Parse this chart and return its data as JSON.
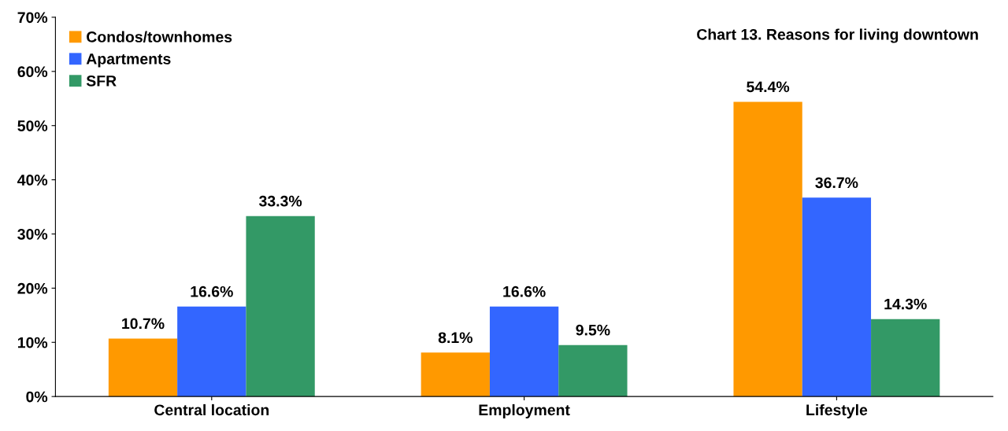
{
  "chart_data": {
    "type": "bar",
    "title": "Chart 13. Reasons for living downtown",
    "categories": [
      "Central location",
      "Employment",
      "Lifestyle"
    ],
    "series": [
      {
        "name": "Condos/townhomes",
        "color": "#ff9900",
        "values": [
          10.7,
          8.1,
          54.4
        ],
        "value_labels": [
          "10.7%",
          "8.1%",
          "54.4%"
        ]
      },
      {
        "name": "Apartments",
        "color": "#3366ff",
        "values": [
          16.6,
          16.6,
          36.7
        ],
        "value_labels": [
          "16.6%",
          "16.6%",
          "36.7%"
        ]
      },
      {
        "name": "SFR",
        "color": "#339966",
        "values": [
          33.3,
          9.5,
          14.3
        ],
        "value_labels": [
          "33.3%",
          "9.5%",
          "14.3%"
        ]
      }
    ],
    "ylim": [
      0,
      70
    ],
    "yticks": [
      {
        "value": 0,
        "label": "0%"
      },
      {
        "value": 10,
        "label": "10%"
      },
      {
        "value": 20,
        "label": "20%"
      },
      {
        "value": 30,
        "label": "30%"
      },
      {
        "value": 40,
        "label": "40%"
      },
      {
        "value": 50,
        "label": "50%"
      },
      {
        "value": 60,
        "label": "60%"
      },
      {
        "value": 70,
        "label": "70%"
      }
    ],
    "grid": false,
    "legend": "top left"
  }
}
